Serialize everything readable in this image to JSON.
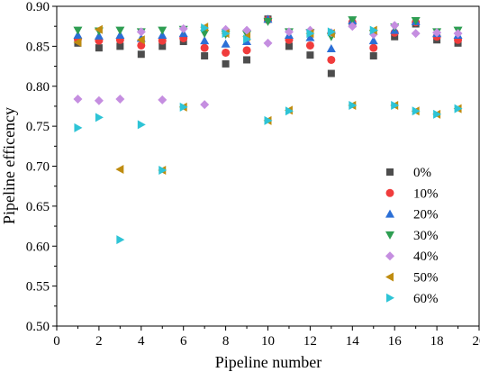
{
  "chart_data": {
    "type": "scatter",
    "title": "",
    "xlabel": "Pipeline number",
    "ylabel": "Pipeline efficency",
    "xlim": [
      0,
      20
    ],
    "ylim": [
      0.5,
      0.9
    ],
    "xticks": [
      "0",
      "2",
      "4",
      "6",
      "8",
      "10",
      "12",
      "14",
      "16",
      "18",
      "20"
    ],
    "yticks": [
      "0.50",
      "0.55",
      "0.60",
      "0.65",
      "0.70",
      "0.75",
      "0.80",
      "0.85",
      "0.90"
    ],
    "grid": false,
    "legend_position": "right",
    "series": [
      {
        "name": "0%",
        "marker": "square",
        "color": "#4d4d4d",
        "x": [
          1,
          2,
          3,
          4,
          5,
          6,
          7,
          8,
          9,
          10,
          11,
          12,
          13,
          14,
          15,
          16,
          17,
          18,
          19
        ],
        "y": [
          0.854,
          0.848,
          0.85,
          0.84,
          0.85,
          0.856,
          0.838,
          0.828,
          0.833,
          0.884,
          0.85,
          0.839,
          0.816,
          0.878,
          0.838,
          0.862,
          0.878,
          0.858,
          0.854
        ]
      },
      {
        "name": "10%",
        "marker": "circle",
        "color": "#f03c3c",
        "x": [
          1,
          2,
          3,
          4,
          5,
          6,
          7,
          8,
          9,
          10,
          11,
          12,
          13,
          14,
          15,
          16,
          17,
          18,
          19
        ],
        "y": [
          0.859,
          0.857,
          0.858,
          0.851,
          0.857,
          0.86,
          0.848,
          0.842,
          0.845,
          0.883,
          0.858,
          0.851,
          0.833,
          0.88,
          0.848,
          0.867,
          0.88,
          0.862,
          0.858
        ]
      },
      {
        "name": "20%",
        "marker": "triangle-up",
        "color": "#2b6fd6",
        "x": [
          1,
          2,
          3,
          4,
          5,
          6,
          7,
          8,
          9,
          10,
          11,
          12,
          13,
          14,
          15,
          16,
          17,
          18,
          19
        ],
        "y": [
          0.864,
          0.863,
          0.864,
          0.86,
          0.864,
          0.866,
          0.857,
          0.853,
          0.856,
          0.884,
          0.864,
          0.861,
          0.847,
          0.882,
          0.857,
          0.87,
          0.881,
          0.866,
          0.864
        ]
      },
      {
        "name": "30%",
        "marker": "triangle-down",
        "color": "#2e9e52",
        "x": [
          1,
          2,
          3,
          4,
          5,
          6,
          7,
          8,
          9,
          10,
          11,
          12,
          13,
          14,
          15,
          16,
          17,
          18,
          19
        ],
        "y": [
          0.87,
          0.869,
          0.87,
          0.868,
          0.87,
          0.871,
          0.866,
          0.865,
          0.865,
          0.881,
          0.868,
          0.867,
          0.862,
          0.883,
          0.866,
          0.874,
          0.882,
          0.868,
          0.87
        ]
      },
      {
        "name": "40%",
        "marker": "diamond",
        "color": "#c58ee0",
        "x": [
          1,
          2,
          3,
          4,
          5,
          6,
          7,
          8,
          9,
          10,
          11,
          12,
          13,
          14,
          15,
          16,
          17,
          18,
          19
        ],
        "y": [
          0.784,
          0.782,
          0.784,
          0.868,
          0.783,
          0.872,
          0.777,
          0.871,
          0.87,
          0.854,
          0.868,
          0.87,
          0.867,
          0.875,
          0.865,
          0.876,
          0.866,
          0.867,
          0.866
        ]
      },
      {
        "name": "50%",
        "marker": "triangle-left",
        "color": "#bf8c10",
        "x": [
          1,
          2,
          3,
          4,
          5,
          6,
          7,
          8,
          9,
          10,
          11,
          12,
          13,
          14,
          15,
          16,
          17,
          18,
          19
        ],
        "y": [
          0.855,
          0.871,
          0.696,
          0.858,
          0.695,
          0.774,
          0.874,
          0.866,
          0.862,
          0.757,
          0.77,
          0.866,
          0.866,
          0.776,
          0.87,
          0.776,
          0.769,
          0.765,
          0.772
        ]
      },
      {
        "name": "60%",
        "marker": "triangle-right",
        "color": "#2ec4d6",
        "x": [
          1,
          2,
          3,
          4,
          5,
          6,
          7,
          8,
          9,
          10,
          11,
          12,
          13,
          14,
          15,
          16,
          17,
          18,
          19
        ],
        "y": [
          0.748,
          0.761,
          0.608,
          0.752,
          0.695,
          0.774,
          0.873,
          0.866,
          0.859,
          0.757,
          0.769,
          0.866,
          0.868,
          0.776,
          0.87,
          0.776,
          0.769,
          0.765,
          0.772
        ]
      }
    ]
  }
}
